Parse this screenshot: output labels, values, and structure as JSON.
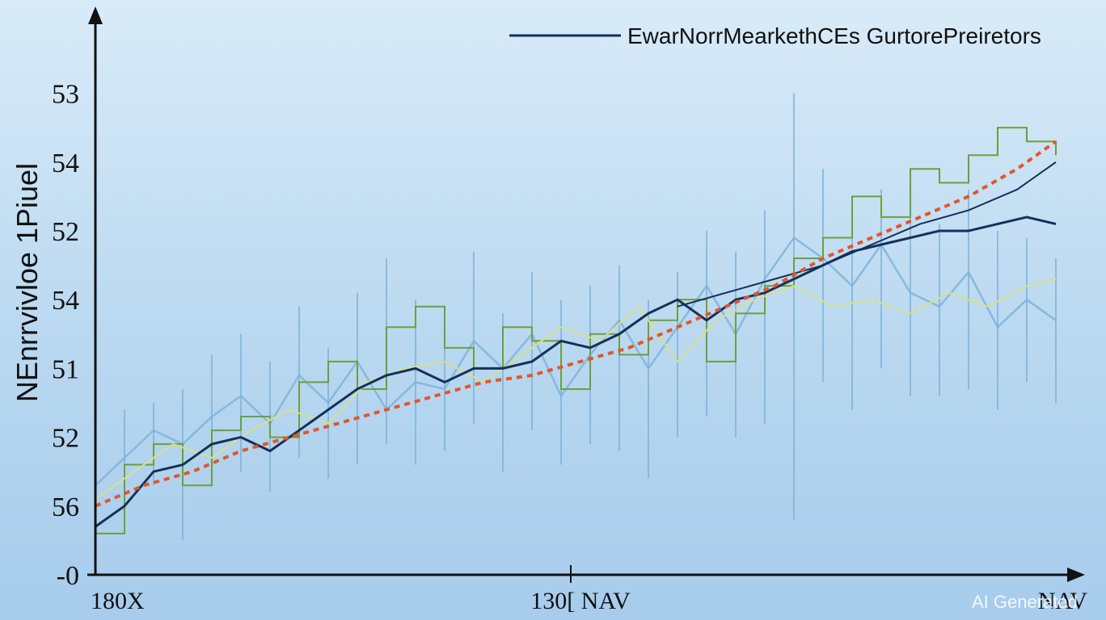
{
  "chart_data": {
    "type": "line",
    "ylabel": "NEnrrvivloe 1Piuel",
    "legend": {
      "position": "top-right",
      "entries": [
        {
          "label": "EwarNorrMearkethCEs GurtorePreiretors",
          "color": "#14305a"
        }
      ]
    },
    "y_ticks": [
      {
        "label": "53",
        "value": 6
      },
      {
        "label": "54",
        "value": 5
      },
      {
        "label": "52",
        "value": 4
      },
      {
        "label": "54",
        "value": 3
      },
      {
        "label": "51",
        "value": 2
      },
      {
        "label": "52",
        "value": 1
      },
      {
        "label": "56",
        "value": 0
      },
      {
        "label": "-0",
        "value": -1
      }
    ],
    "x_ticks": [
      {
        "label": "180X",
        "value": 0
      },
      {
        "label": "130[ NAV",
        "value": 50
      },
      {
        "label": "NAV",
        "value": 100
      }
    ],
    "xlim": [
      0,
      100
    ],
    "ylim": [
      -1,
      6.3
    ],
    "series": [
      {
        "color": "#7bb0d8",
        "style": "spikes",
        "width": 2,
        "x": [
          0,
          3,
          6,
          9,
          12,
          15,
          18,
          21,
          24,
          27,
          30,
          33,
          36,
          39,
          42,
          45,
          48,
          51,
          54,
          57,
          60,
          63,
          66,
          69,
          72,
          75,
          78,
          81,
          84,
          87,
          90,
          93,
          96,
          99
        ],
        "y": [
          0.3,
          0.7,
          1.1,
          0.9,
          1.3,
          1.6,
          1.2,
          1.9,
          1.5,
          2.1,
          1.4,
          1.8,
          1.7,
          2.4,
          2.0,
          2.5,
          1.6,
          2.2,
          2.7,
          2.0,
          2.6,
          3.2,
          2.5,
          3.3,
          3.9,
          3.6,
          3.2,
          3.8,
          3.1,
          2.9,
          3.4,
          2.6,
          3.0,
          2.7
        ],
        "spike_low": [
          -0.2,
          0.1,
          0.3,
          -0.5,
          0.4,
          0.5,
          0.2,
          0.7,
          0.4,
          0.6,
          0.9,
          0.6,
          0.8,
          1.2,
          0.5,
          1.1,
          0.6,
          0.9,
          0.8,
          0.4,
          1.0,
          1.3,
          1.0,
          1.2,
          -0.2,
          1.8,
          1.4,
          2.0,
          1.6,
          1.6,
          1.7,
          1.4,
          1.8,
          1.5
        ],
        "spike_high": [
          0.9,
          1.4,
          1.5,
          1.7,
          2.2,
          2.5,
          2.1,
          2.9,
          2.3,
          3.1,
          3.6,
          3.0,
          2.9,
          3.7,
          2.8,
          3.4,
          3.0,
          3.2,
          3.5,
          3.0,
          3.4,
          4.0,
          3.7,
          4.3,
          6.0,
          4.9,
          4.5,
          4.6,
          4.2,
          4.1,
          4.6,
          4.0,
          3.9,
          3.6
        ]
      },
      {
        "color": "#6e9f3a",
        "style": "step",
        "width": 2,
        "x": [
          0,
          3,
          6,
          9,
          12,
          15,
          18,
          21,
          24,
          27,
          30,
          33,
          36,
          39,
          42,
          45,
          48,
          51,
          54,
          57,
          60,
          63,
          66,
          69,
          72,
          75,
          78,
          81,
          84,
          87,
          90,
          93,
          96,
          99
        ],
        "y": [
          -0.4,
          0.6,
          0.9,
          0.3,
          1.1,
          1.3,
          1.0,
          1.8,
          2.1,
          1.7,
          2.6,
          2.9,
          2.3,
          2.0,
          2.6,
          2.4,
          1.7,
          2.5,
          2.2,
          2.7,
          3.0,
          2.1,
          2.8,
          3.2,
          3.6,
          3.9,
          4.5,
          4.2,
          4.9,
          4.7,
          5.1,
          5.5,
          5.3,
          5.1
        ]
      },
      {
        "color": "#d7e08a",
        "style": "line",
        "width": 2,
        "x": [
          0,
          4,
          8,
          12,
          16,
          20,
          24,
          28,
          32,
          36,
          40,
          44,
          48,
          52,
          56,
          60,
          64,
          68,
          72,
          76,
          80,
          84,
          88,
          92,
          96,
          99
        ],
        "y": [
          0.1,
          0.5,
          0.9,
          0.7,
          1.1,
          1.4,
          1.2,
          1.8,
          2.0,
          2.1,
          1.8,
          2.2,
          2.6,
          2.4,
          2.9,
          2.1,
          2.7,
          3.0,
          3.2,
          2.9,
          3.0,
          2.8,
          3.1,
          2.9,
          3.2,
          3.3
        ]
      },
      {
        "color": "#14305a",
        "style": "line",
        "width": 3,
        "x": [
          0,
          3,
          6,
          9,
          12,
          15,
          18,
          21,
          24,
          27,
          30,
          33,
          36,
          39,
          42,
          45,
          48,
          51,
          54,
          57,
          60,
          63,
          66,
          69,
          72,
          75,
          78,
          81,
          84,
          87,
          90,
          93,
          96,
          99
        ],
        "y": [
          -0.3,
          0.0,
          0.5,
          0.6,
          0.9,
          1.0,
          0.8,
          1.1,
          1.4,
          1.7,
          1.9,
          2.0,
          1.8,
          2.0,
          2.0,
          2.1,
          2.4,
          2.3,
          2.5,
          2.8,
          3.0,
          2.7,
          3.0,
          3.1,
          3.3,
          3.5,
          3.7,
          3.8,
          3.9,
          4.0,
          4.0,
          4.1,
          4.2,
          4.1
        ]
      },
      {
        "color": "#14305a",
        "style": "line",
        "width": 2,
        "x": [
          60,
          65,
          70,
          75,
          80,
          85,
          90,
          95,
          99
        ],
        "y": [
          2.9,
          3.1,
          3.3,
          3.5,
          3.8,
          4.1,
          4.3,
          4.6,
          5.0
        ]
      },
      {
        "color": "#e2562c",
        "style": "dashed",
        "width": 4,
        "x": [
          0,
          5,
          10,
          15,
          20,
          25,
          30,
          35,
          40,
          45,
          50,
          55,
          60,
          65,
          70,
          75,
          80,
          85,
          90,
          95,
          99
        ],
        "y": [
          0.0,
          0.3,
          0.5,
          0.8,
          1.0,
          1.2,
          1.4,
          1.6,
          1.8,
          1.9,
          2.1,
          2.3,
          2.6,
          2.9,
          3.2,
          3.6,
          3.9,
          4.2,
          4.5,
          4.9,
          5.3
        ]
      }
    ],
    "grid": false
  },
  "watermark": "AI Generated"
}
